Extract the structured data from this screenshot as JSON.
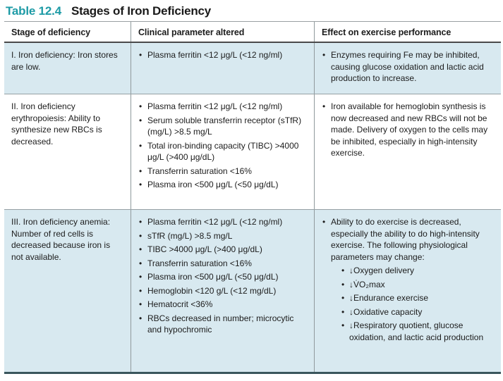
{
  "title": {
    "label": "Table 12.4",
    "text": "Stages of Iron Deficiency"
  },
  "colors": {
    "accent_teal": "#1e9ba6",
    "row_highlight_blue": "#d8e9f0",
    "header_rule": "#4a4a4a",
    "row_rule": "#96a0a4",
    "bottom_rule": "#3a565c"
  },
  "table": {
    "headers": {
      "stage": "Stage of deficiency",
      "clinical": "Clinical parameter altered",
      "effect": "Effect on exercise performance"
    },
    "rows": [
      {
        "stage": "I. Iron deficiency: Iron stores are low.",
        "clinical": [
          "Plasma ferritin <12 μg/L (<12 ng/ml)"
        ],
        "effect": [
          "Enzymes requiring Fe may be inhibited, causing glucose oxidation and lactic acid production to increase."
        ]
      },
      {
        "stage": "II. Iron deficiency erythropoiesis: Ability to synthesize new RBCs is decreased.",
        "clinical": [
          "Plasma ferritin <12 μg/L (<12 ng/ml)",
          "Serum soluble transferrin receptor (sTfR) (mg/L) >8.5 mg/L",
          "Total iron-binding capacity (TIBC) >4000 μg/L (>400 μg/dL)",
          "Transferrin saturation <16%",
          "Plasma iron <500 μg/L (<50 μg/dL)"
        ],
        "effect": [
          "Iron available for hemoglobin synthesis is now decreased and new RBCs will not be made. Delivery of oxygen to the cells may be inhibited, especially in high-intensity exercise."
        ]
      },
      {
        "stage": "III. Iron deficiency anemia: Number of red cells is decreased because iron is not available.",
        "clinical": [
          "Plasma ferritin <12 μg/L (<12 ng/ml)",
          "sTfR (mg/L) >8.5 mg/L",
          "TIBC >4000 μg/L (>400 μg/dL)",
          "Transferrin saturation <16%",
          "Plasma iron <500 μg/L (<50 μg/dL)",
          "Hemoglobin <120 g/L (<12 mg/dL)",
          "Hematocrit <36%",
          "RBCs decreased in number; microcytic and hypochromic"
        ],
        "effect": [
          "Ability to do exercise is decreased, especially the ability to do high-intensity exercise. The following physiological parameters may change:"
        ],
        "effect_sub": [
          "↓Oxygen delivery",
          "↓V̇O₂max",
          "↓Endurance exercise",
          "↓Oxidative capacity",
          "↓Respiratory quotient, glucose oxidation, and lactic acid production"
        ]
      }
    ]
  }
}
